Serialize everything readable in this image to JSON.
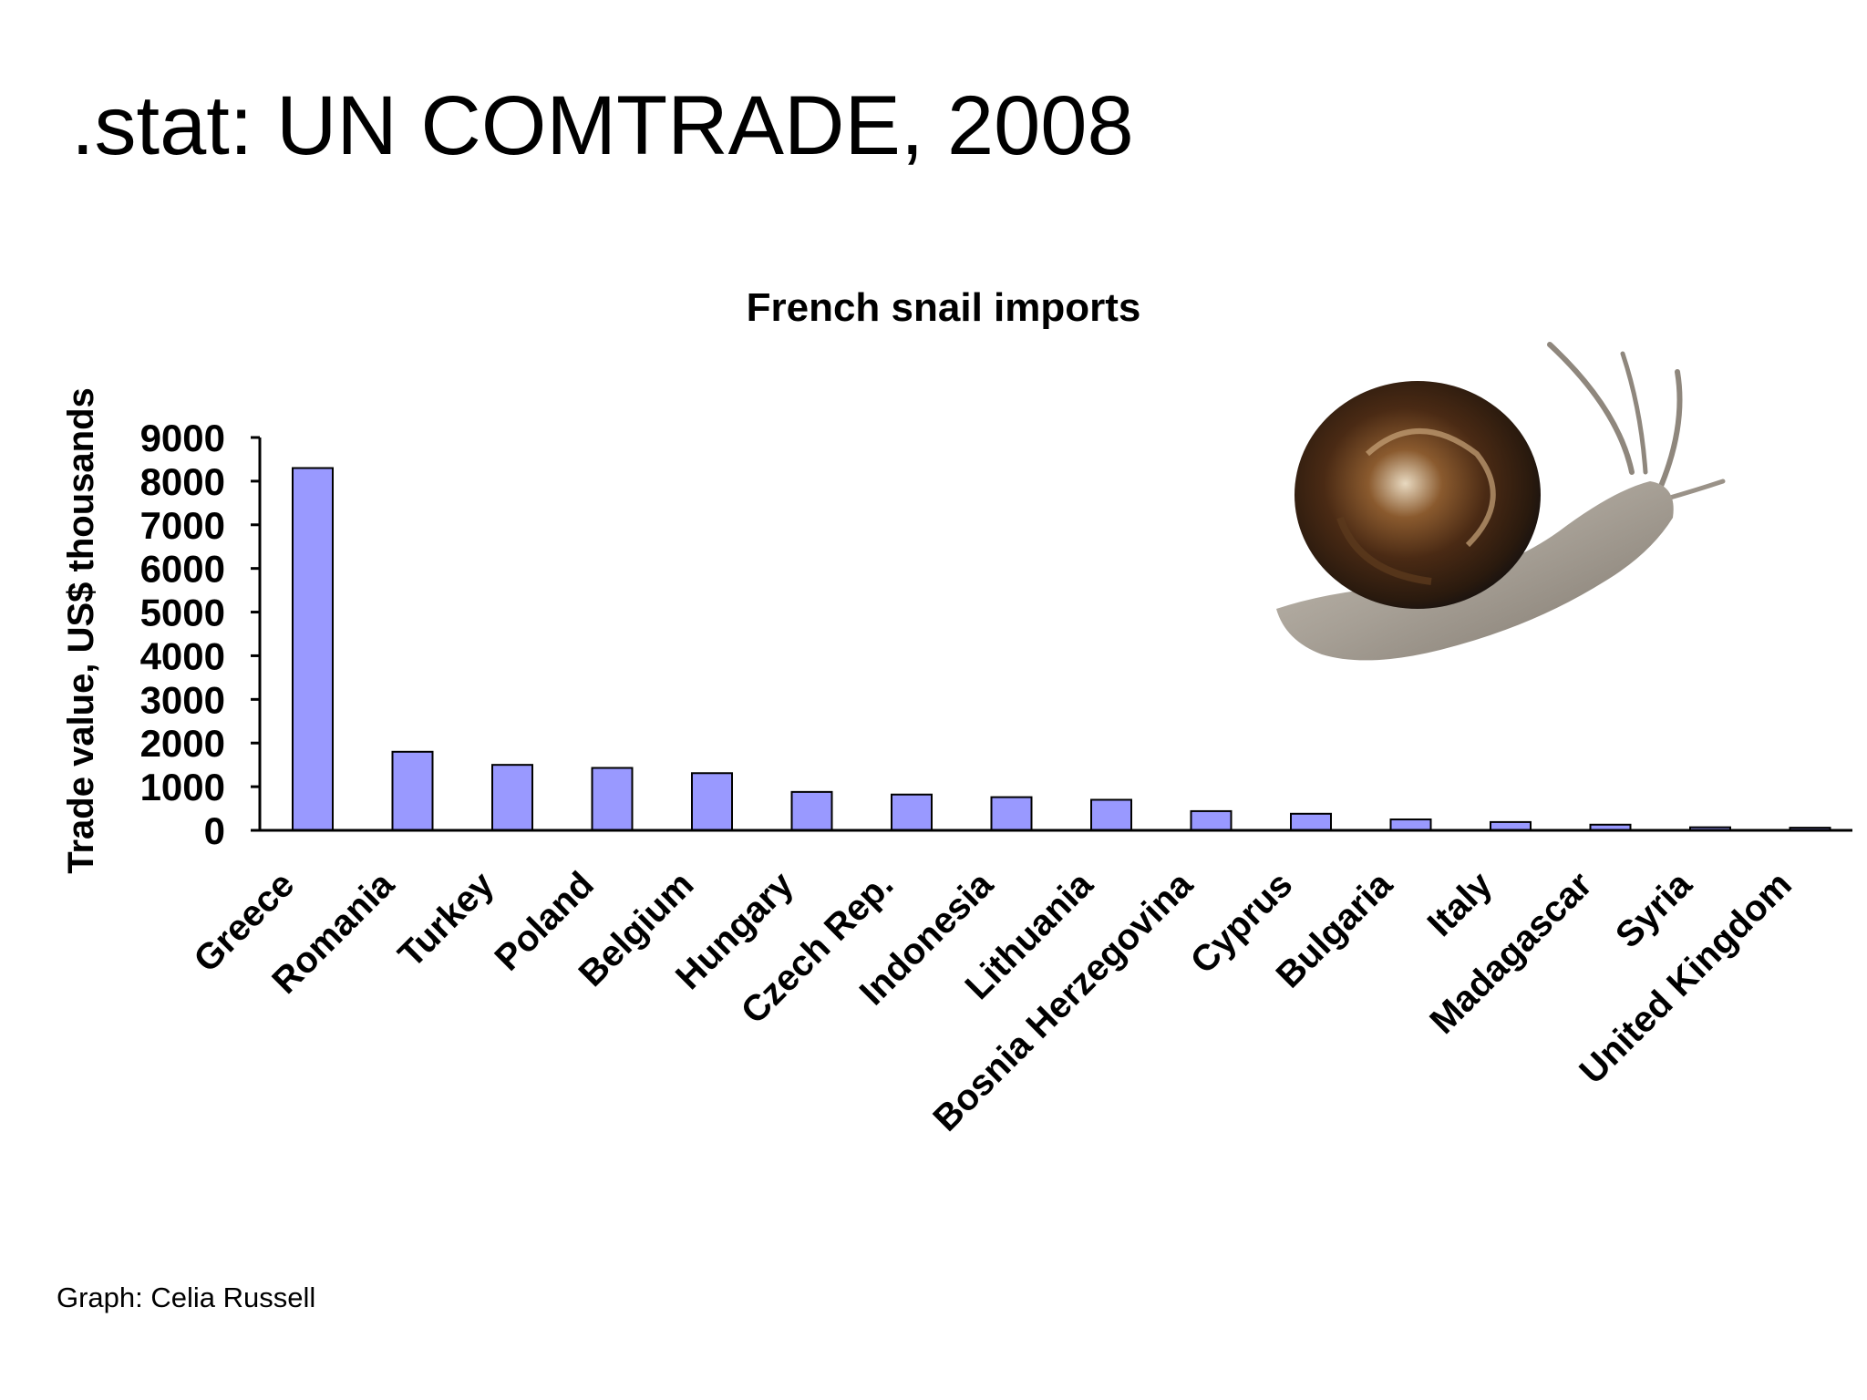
{
  "slide": {
    "title": ".stat: UN COMTRADE, 2008",
    "credit": "Graph: Celia Russell"
  },
  "snail_image": {
    "icon": "snail-photo-icon"
  },
  "chart_data": {
    "type": "bar",
    "title": "French snail imports",
    "xlabel": "",
    "ylabel": "Trade value, US$ thousands",
    "categories": [
      "Greece",
      "Romania",
      "Turkey",
      "Poland",
      "Belgium",
      "Hungary",
      "Czech Rep.",
      "Indonesia",
      "Lithuania",
      "Bosnia Herzegovina",
      "Cyprus",
      "Bulgaria",
      "Italy",
      "Madagascar",
      "Syria",
      "United Kingdom"
    ],
    "values": [
      8300,
      1800,
      1500,
      1430,
      1310,
      880,
      820,
      760,
      700,
      440,
      380,
      250,
      190,
      130,
      70,
      60
    ],
    "ylim": [
      0,
      9000
    ],
    "yticks": [
      0,
      1000,
      2000,
      3000,
      4000,
      5000,
      6000,
      7000,
      8000,
      9000
    ],
    "bar_color": "#9999ff",
    "grid": false,
    "legend": "none"
  }
}
